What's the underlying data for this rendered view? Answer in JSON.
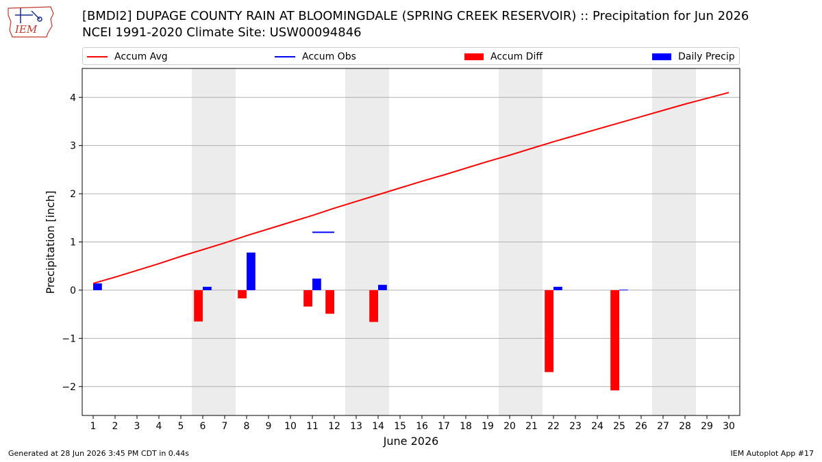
{
  "header": {
    "title_line1": "[BMDI2] DUPAGE COUNTY RAIN AT BLOOMINGDALE (SPRING CREEK RESERVOIR) :: Precipitation for Jun 2026",
    "title_line2": "NCEI 1991-2020 Climate Site: USW00094846",
    "logo_text": "IEM"
  },
  "legend": {
    "items": [
      {
        "label": "Accum Avg",
        "color": "#ff0000",
        "kind": "line"
      },
      {
        "label": "Accum Obs",
        "color": "#0000ff",
        "kind": "line"
      },
      {
        "label": "Accum Diff",
        "color": "#ff0000",
        "kind": "box"
      },
      {
        "label": "Daily Precip",
        "color": "#0000ff",
        "kind": "box"
      }
    ]
  },
  "footer": {
    "left": "Generated at 28 Jun 2026 3:45 PM CDT in 0.44s",
    "right": "IEM Autoplot App #17"
  },
  "chart_data": {
    "type": "bar",
    "xlabel": "June 2026",
    "ylabel": "Precipitation [inch]",
    "x": [
      1,
      2,
      3,
      4,
      5,
      6,
      7,
      8,
      9,
      10,
      11,
      12,
      13,
      14,
      15,
      16,
      17,
      18,
      19,
      20,
      21,
      22,
      23,
      24,
      25,
      26,
      27,
      28,
      29,
      30
    ],
    "xlim": [
      0.5,
      30.5
    ],
    "ylim": [
      -2.6,
      4.6
    ],
    "yticks": [
      -2,
      -1,
      0,
      1,
      2,
      3,
      4
    ],
    "ytick_labels": [
      "−2",
      "−1",
      "0",
      "1",
      "2",
      "3",
      "4"
    ],
    "grid": true,
    "weekend_shading": [
      [
        5.5,
        7.5
      ],
      [
        12.5,
        14.5
      ],
      [
        19.5,
        21.5
      ],
      [
        26.5,
        28.5
      ]
    ],
    "series": [
      {
        "name": "Accum Avg",
        "type": "line",
        "color": "#ff0000",
        "values": [
          0.14,
          0.27,
          0.41,
          0.55,
          0.7,
          0.84,
          0.98,
          1.13,
          1.27,
          1.41,
          1.55,
          1.7,
          1.84,
          1.98,
          2.12,
          2.26,
          2.39,
          2.53,
          2.67,
          2.8,
          2.94,
          3.08,
          3.21,
          3.34,
          3.47,
          3.6,
          3.73,
          3.86,
          3.98,
          4.1
        ]
      },
      {
        "name": "Accum Obs",
        "type": "segment",
        "color": "#0000ff",
        "x": [
          11,
          12
        ],
        "values": [
          1.2,
          1.2
        ]
      },
      {
        "name": "Accum Diff",
        "type": "bar",
        "color": "#ff0000",
        "x": [
          6,
          8,
          11,
          12,
          14,
          22,
          25
        ],
        "values": [
          -0.65,
          -0.17,
          -0.34,
          -0.49,
          -0.66,
          -1.7,
          -2.08
        ]
      },
      {
        "name": "Daily Precip",
        "type": "bar",
        "color": "#0000ff",
        "x": [
          1,
          6,
          8,
          11,
          14,
          22,
          25
        ],
        "values": [
          0.14,
          0.07,
          0.78,
          0.24,
          0.11,
          0.07,
          0.01
        ]
      }
    ]
  }
}
